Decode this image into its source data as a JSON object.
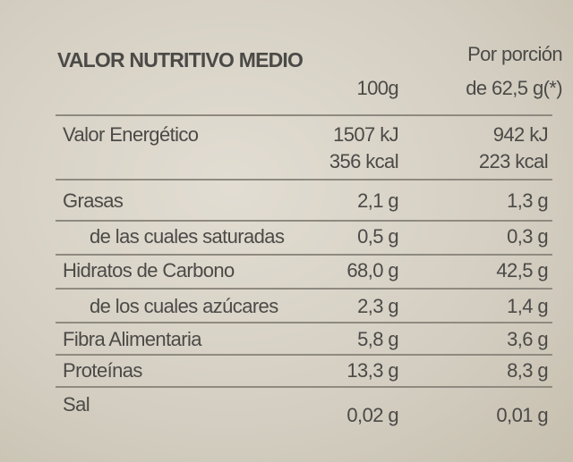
{
  "header": {
    "title": "VALOR NUTRITIVO MEDIO",
    "col1": "100g",
    "col2": [
      "Por porción",
      "de 62,5 g(*)"
    ]
  },
  "rows": [
    {
      "label": "Valor Energético",
      "per100": [
        "1507 kJ",
        "356 kcal"
      ],
      "perPortion": [
        "942 kJ",
        "223 kcal"
      ]
    },
    {
      "label": "Grasas",
      "per100": [
        "2,1 g"
      ],
      "perPortion": [
        "1,3 g"
      ]
    },
    {
      "label": "de las cuales saturadas",
      "per100": [
        "0,5 g"
      ],
      "perPortion": [
        "0,3 g"
      ]
    },
    {
      "label": "Hidratos de Carbono",
      "per100": [
        "68,0 g"
      ],
      "perPortion": [
        "42,5 g"
      ]
    },
    {
      "label": "de los cuales azúcares",
      "per100": [
        "2,3 g"
      ],
      "perPortion": [
        "1,4 g"
      ]
    },
    {
      "label": "Fibra Alimentaria",
      "per100": [
        "5,8 g"
      ],
      "perPortion": [
        "3,6 g"
      ]
    },
    {
      "label": "Proteínas",
      "per100": [
        "13,3 g"
      ],
      "perPortion": [
        "8,3 g"
      ]
    },
    {
      "label": "Sal",
      "per100": [
        "0,02 g"
      ],
      "perPortion": [
        "0,01 g"
      ]
    }
  ]
}
